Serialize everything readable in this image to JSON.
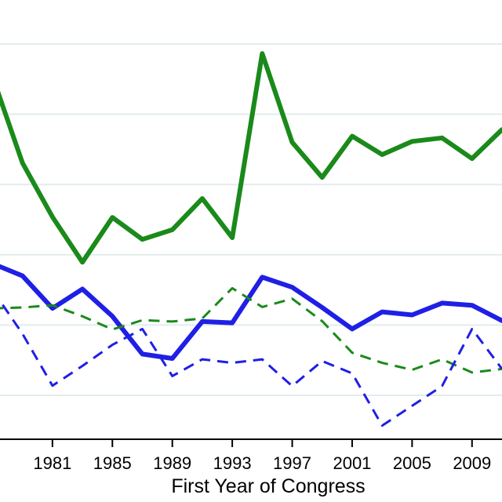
{
  "chart_data": {
    "type": "line",
    "title": "",
    "xlabel": "First Year of Congress",
    "ylabel": "",
    "xlim": [
      1977.5,
      2011
    ],
    "ylim": [
      0,
      100
    ],
    "grid": true,
    "legend": "none",
    "xticks": [
      1981,
      1985,
      1989,
      1993,
      1997,
      2001,
      2005,
      2009
    ],
    "xtick_labels": [
      "1981",
      "1985",
      "1989",
      "1993",
      "1997",
      "2001",
      "2005",
      "2009"
    ],
    "yticks": [
      10,
      26,
      42,
      58,
      74,
      90
    ],
    "series": [
      {
        "name": "green-solid",
        "color": "#1a8a1a",
        "style": "solid",
        "x": [
          1977,
          1979,
          1981,
          1983,
          1985,
          1987,
          1989,
          1991,
          1993,
          1995,
          1997,
          1999,
          2001,
          2003,
          2005,
          2007,
          2009,
          2011
        ],
        "y": [
          82.6,
          62.9,
          50.6,
          40.3,
          50.5,
          45.5,
          47.7,
          54.8,
          45.9,
          87.8,
          67.6,
          59.6,
          69.0,
          64.8,
          67.8,
          68.6,
          63.9,
          70.5
        ]
      },
      {
        "name": "blue-solid",
        "color": "#1f1fe6",
        "style": "solid",
        "x": [
          1977,
          1979,
          1981,
          1983,
          1985,
          1987,
          1989,
          1991,
          1993,
          1995,
          1997,
          1999,
          2001,
          2003,
          2005,
          2007,
          2009,
          2011
        ],
        "y": [
          40.0,
          37.2,
          29.8,
          34.2,
          28.0,
          19.4,
          18.4,
          26.8,
          26.5,
          36.9,
          34.6,
          30.0,
          25.1,
          29.0,
          28.3,
          31.0,
          30.5,
          27.0
        ]
      },
      {
        "name": "green-dashed",
        "color": "#1a8a1a",
        "style": "dashed",
        "x": [
          1977,
          1979,
          1981,
          1983,
          1985,
          1987,
          1989,
          1991,
          1993,
          1995,
          1997,
          1999,
          2001,
          2003,
          2005,
          2007,
          2009,
          2011
        ],
        "y": [
          29.8,
          30.0,
          30.5,
          28.0,
          25.0,
          27.1,
          26.8,
          27.5,
          34.4,
          30.1,
          32.0,
          26.9,
          19.7,
          17.4,
          15.8,
          18.2,
          15.2,
          16.0
        ]
      },
      {
        "name": "blue-dashed",
        "color": "#1f1fe6",
        "style": "dashed",
        "x": [
          1977,
          1979,
          1981,
          1983,
          1985,
          1987,
          1989,
          1991,
          1993,
          1995,
          1997,
          1999,
          2001,
          2003,
          2005,
          2007,
          2009,
          2011
        ],
        "y": [
          34.0,
          24.0,
          12.2,
          16.7,
          21.5,
          25.1,
          14.4,
          18.2,
          17.4,
          18.2,
          12.1,
          17.8,
          15.0,
          3.1,
          7.6,
          12.1,
          25.1,
          16.0
        ]
      }
    ]
  }
}
